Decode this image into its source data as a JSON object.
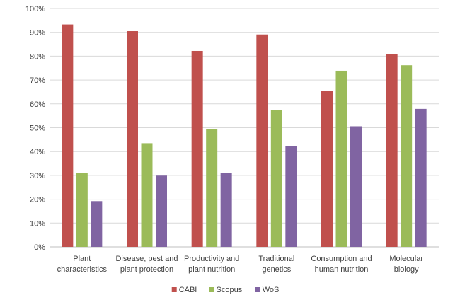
{
  "chart_data": {
    "type": "bar",
    "categories": [
      [
        "Plant",
        "characteristics"
      ],
      [
        "Disease, pest and",
        "plant protection"
      ],
      [
        "Productivity and",
        "plant nutrition"
      ],
      [
        "Traditional",
        "genetics"
      ],
      [
        "Consumption and",
        "human nutrition"
      ],
      [
        "Molecular",
        "biology"
      ]
    ],
    "series": [
      {
        "name": "CABI",
        "color": "#c0504d",
        "values": [
          0.933,
          0.905,
          0.822,
          0.891,
          0.655,
          0.809
        ]
      },
      {
        "name": "Scopus",
        "color": "#9bbb59",
        "values": [
          0.311,
          0.435,
          0.493,
          0.573,
          0.739,
          0.762
        ]
      },
      {
        "name": "WoS",
        "color": "#8064a2",
        "values": [
          0.192,
          0.299,
          0.311,
          0.422,
          0.506,
          0.579
        ]
      }
    ],
    "ylim": [
      0,
      1
    ],
    "yticks": [
      "0%",
      "10%",
      "20%",
      "30%",
      "40%",
      "50%",
      "60%",
      "70%",
      "80%",
      "90%",
      "100%"
    ],
    "grid": true,
    "legend": "bottom-center"
  }
}
